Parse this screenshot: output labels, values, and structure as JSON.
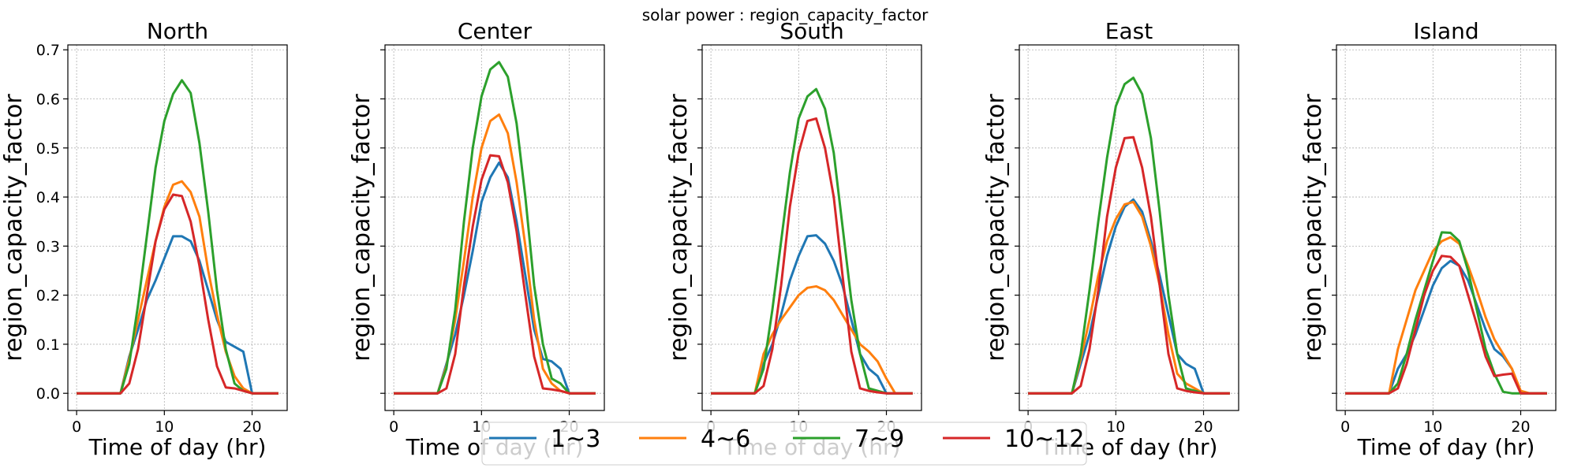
{
  "suptitle": "solar power : region_capacity_factor",
  "colors": {
    "s1": "#1f77b4",
    "s2": "#ff7f0e",
    "s3": "#2ca02c",
    "s4": "#d62728",
    "grid": "#b0b0b0",
    "axis": "#000000"
  },
  "chart_data": [
    {
      "type": "line",
      "title": "North",
      "xlabel": "Time of day (hr)",
      "ylabel": "region_capacity_factor",
      "xlim": [
        -1,
        24
      ],
      "ylim": [
        -0.035,
        0.71
      ],
      "grid": true,
      "x": [
        0,
        1,
        2,
        3,
        4,
        5,
        6,
        7,
        8,
        9,
        10,
        11,
        12,
        13,
        14,
        15,
        16,
        17,
        18,
        19,
        20,
        21,
        22,
        23
      ],
      "series": [
        {
          "name": "1~3",
          "values": [
            0,
            0,
            0,
            0,
            0,
            0,
            0.075,
            0.13,
            0.19,
            0.23,
            0.275,
            0.32,
            0.32,
            0.31,
            0.27,
            0.21,
            0.15,
            0.105,
            0.095,
            0.085,
            0,
            0,
            0,
            0
          ]
        },
        {
          "name": "4~6",
          "values": [
            0,
            0,
            0,
            0,
            0,
            0,
            0.07,
            0.15,
            0.23,
            0.31,
            0.38,
            0.425,
            0.432,
            0.41,
            0.36,
            0.25,
            0.16,
            0.085,
            0.035,
            0.01,
            0,
            0,
            0,
            0
          ]
        },
        {
          "name": "7~9",
          "values": [
            0,
            0,
            0,
            0,
            0,
            0,
            0.06,
            0.18,
            0.32,
            0.46,
            0.555,
            0.61,
            0.638,
            0.612,
            0.51,
            0.37,
            0.21,
            0.09,
            0.02,
            0.005,
            0,
            0,
            0,
            0
          ]
        },
        {
          "name": "10~12",
          "values": [
            0,
            0,
            0,
            0,
            0,
            0,
            0.02,
            0.09,
            0.2,
            0.31,
            0.375,
            0.405,
            0.402,
            0.35,
            0.26,
            0.15,
            0.055,
            0.012,
            0.01,
            0.005,
            0,
            0,
            0,
            0
          ]
        }
      ]
    },
    {
      "type": "line",
      "title": "Center",
      "xlabel": "Time of day (hr)",
      "ylabel": "region_capacity_factor",
      "xlim": [
        -1,
        24
      ],
      "ylim": [
        -0.035,
        0.71
      ],
      "grid": true,
      "x": [
        0,
        1,
        2,
        3,
        4,
        5,
        6,
        7,
        8,
        9,
        10,
        11,
        12,
        13,
        14,
        15,
        16,
        17,
        18,
        19,
        20,
        21,
        22,
        23
      ],
      "series": [
        {
          "name": "1~3",
          "values": [
            0,
            0,
            0,
            0,
            0,
            0,
            0.06,
            0.12,
            0.2,
            0.29,
            0.39,
            0.44,
            0.47,
            0.44,
            0.35,
            0.24,
            0.13,
            0.07,
            0.065,
            0.05,
            0,
            0,
            0,
            0
          ]
        },
        {
          "name": "4~6",
          "values": [
            0,
            0,
            0,
            0,
            0,
            0,
            0.055,
            0.15,
            0.27,
            0.4,
            0.5,
            0.555,
            0.568,
            0.53,
            0.43,
            0.3,
            0.15,
            0.05,
            0.02,
            0.005,
            0,
            0,
            0,
            0
          ]
        },
        {
          "name": "7~9",
          "values": [
            0,
            0,
            0,
            0,
            0,
            0,
            0.05,
            0.17,
            0.35,
            0.5,
            0.605,
            0.66,
            0.675,
            0.645,
            0.55,
            0.4,
            0.22,
            0.1,
            0.03,
            0.02,
            0,
            0,
            0,
            0
          ]
        },
        {
          "name": "10~12",
          "values": [
            0,
            0,
            0,
            0,
            0,
            0,
            0.01,
            0.08,
            0.22,
            0.34,
            0.435,
            0.485,
            0.483,
            0.43,
            0.33,
            0.2,
            0.075,
            0.01,
            0.008,
            0.005,
            0,
            0,
            0,
            0
          ]
        }
      ]
    },
    {
      "type": "line",
      "title": "South",
      "xlabel": "Time of day (hr)",
      "ylabel": "region_capacity_factor",
      "xlim": [
        -1,
        24
      ],
      "ylim": [
        -0.035,
        0.71
      ],
      "grid": true,
      "x": [
        0,
        1,
        2,
        3,
        4,
        5,
        6,
        7,
        8,
        9,
        10,
        11,
        12,
        13,
        14,
        15,
        16,
        17,
        18,
        19,
        20,
        21,
        22,
        23
      ],
      "series": [
        {
          "name": "1~3",
          "values": [
            0,
            0,
            0,
            0,
            0,
            0,
            0.06,
            0.1,
            0.16,
            0.23,
            0.28,
            0.32,
            0.322,
            0.305,
            0.27,
            0.22,
            0.15,
            0.08,
            0.05,
            0.035,
            0,
            0,
            0,
            0
          ]
        },
        {
          "name": "4~6",
          "values": [
            0,
            0,
            0,
            0,
            0,
            0,
            0.08,
            0.12,
            0.15,
            0.175,
            0.2,
            0.215,
            0.218,
            0.21,
            0.19,
            0.16,
            0.13,
            0.1,
            0.085,
            0.065,
            0.03,
            0,
            0,
            0
          ]
        },
        {
          "name": "7~9",
          "values": [
            0,
            0,
            0,
            0,
            0,
            0,
            0.05,
            0.17,
            0.31,
            0.45,
            0.56,
            0.605,
            0.62,
            0.58,
            0.49,
            0.34,
            0.19,
            0.08,
            0.01,
            0.005,
            0,
            0,
            0,
            0
          ]
        },
        {
          "name": "10~12",
          "values": [
            0,
            0,
            0,
            0,
            0,
            0,
            0.015,
            0.09,
            0.22,
            0.38,
            0.49,
            0.555,
            0.56,
            0.5,
            0.4,
            0.24,
            0.085,
            0.01,
            0.005,
            0.002,
            0,
            0,
            0,
            0
          ]
        }
      ]
    },
    {
      "type": "line",
      "title": "East",
      "xlabel": "Time of day (hr)",
      "ylabel": "region_capacity_factor",
      "xlim": [
        -1,
        24
      ],
      "ylim": [
        -0.035,
        0.71
      ],
      "grid": true,
      "x": [
        0,
        1,
        2,
        3,
        4,
        5,
        6,
        7,
        8,
        9,
        10,
        11,
        12,
        13,
        14,
        15,
        16,
        17,
        18,
        19,
        20,
        21,
        22,
        23
      ],
      "series": [
        {
          "name": "1~3",
          "values": [
            0,
            0,
            0,
            0,
            0,
            0,
            0.06,
            0.12,
            0.2,
            0.28,
            0.34,
            0.38,
            0.395,
            0.37,
            0.31,
            0.24,
            0.16,
            0.08,
            0.06,
            0.05,
            0,
            0,
            0,
            0
          ]
        },
        {
          "name": "4~6",
          "values": [
            0,
            0,
            0,
            0,
            0,
            0,
            0.07,
            0.15,
            0.24,
            0.31,
            0.355,
            0.385,
            0.39,
            0.36,
            0.3,
            0.22,
            0.12,
            0.04,
            0.02,
            0.01,
            0,
            0,
            0,
            0
          ]
        },
        {
          "name": "7~9",
          "values": [
            0,
            0,
            0,
            0,
            0,
            0,
            0.08,
            0.21,
            0.35,
            0.48,
            0.585,
            0.63,
            0.643,
            0.61,
            0.52,
            0.37,
            0.2,
            0.08,
            0.01,
            0.005,
            0,
            0,
            0,
            0
          ]
        },
        {
          "name": "10~12",
          "values": [
            0,
            0,
            0,
            0,
            0,
            0,
            0.015,
            0.09,
            0.21,
            0.36,
            0.46,
            0.52,
            0.522,
            0.46,
            0.36,
            0.22,
            0.08,
            0.01,
            0.005,
            0.002,
            0,
            0,
            0,
            0
          ]
        }
      ]
    },
    {
      "type": "line",
      "title": "Island",
      "xlabel": "Time of day (hr)",
      "ylabel": "region_capacity_factor",
      "xlim": [
        -1,
        24
      ],
      "ylim": [
        -0.035,
        0.71
      ],
      "grid": true,
      "x": [
        0,
        1,
        2,
        3,
        4,
        5,
        6,
        7,
        8,
        9,
        10,
        11,
        12,
        13,
        14,
        15,
        16,
        17,
        18,
        19,
        20,
        21,
        22,
        23
      ],
      "series": [
        {
          "name": "1~3",
          "values": [
            0,
            0,
            0,
            0,
            0,
            0,
            0.05,
            0.08,
            0.12,
            0.17,
            0.22,
            0.255,
            0.27,
            0.26,
            0.23,
            0.18,
            0.13,
            0.09,
            0.075,
            0.05,
            0,
            0,
            0,
            0
          ]
        },
        {
          "name": "4~6",
          "values": [
            0,
            0,
            0,
            0,
            0,
            0,
            0.09,
            0.15,
            0.21,
            0.25,
            0.29,
            0.31,
            0.318,
            0.305,
            0.26,
            0.21,
            0.155,
            0.11,
            0.08,
            0.05,
            0.005,
            0,
            0,
            0
          ]
        },
        {
          "name": "7~9",
          "values": [
            0,
            0,
            0,
            0,
            0,
            0,
            0.02,
            0.08,
            0.15,
            0.21,
            0.27,
            0.328,
            0.327,
            0.31,
            0.25,
            0.17,
            0.09,
            0.04,
            0.003,
            0,
            0,
            0,
            0,
            0
          ]
        },
        {
          "name": "10~12",
          "values": [
            0,
            0,
            0,
            0,
            0,
            0,
            0.01,
            0.06,
            0.13,
            0.2,
            0.25,
            0.28,
            0.278,
            0.26,
            0.2,
            0.14,
            0.075,
            0.035,
            0.038,
            0.04,
            0,
            0,
            0,
            0
          ]
        }
      ]
    }
  ],
  "legend": {
    "position": "bottom-center",
    "entries": [
      "1~3",
      "4~6",
      "7~9",
      "10~12"
    ]
  }
}
